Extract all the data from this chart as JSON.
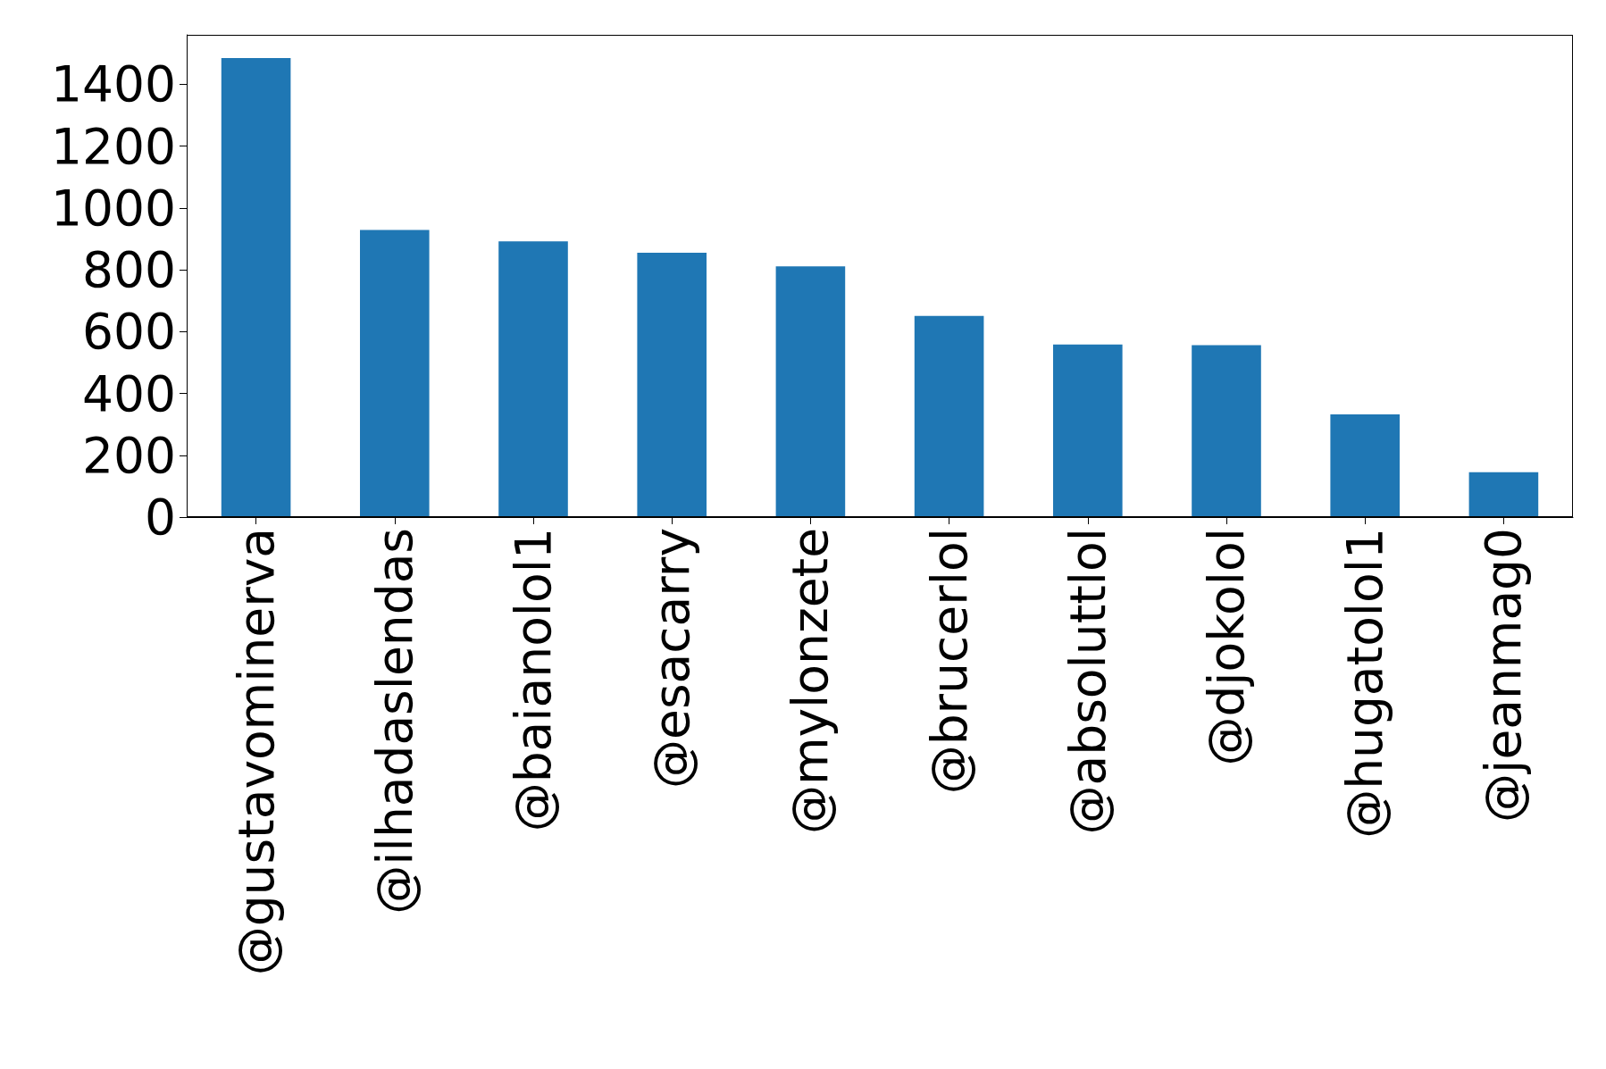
{
  "chart_data": {
    "type": "bar",
    "categories": [
      "@gustavominerva",
      "@ilhadaslendas",
      "@baianolol1",
      "@esacarry",
      "@mylonzete",
      "@brucerlol",
      "@absoluttlol",
      "@djokolol",
      "@hugatolol1",
      "@jeanmag0"
    ],
    "values": [
      1485,
      929,
      892,
      855,
      811,
      651,
      558,
      556,
      332,
      145
    ],
    "color": "#1f77b4",
    "ylim": [
      0,
      1560
    ],
    "yticks": [
      0,
      200,
      400,
      600,
      800,
      1000,
      1200,
      1400
    ],
    "grid": false
  }
}
